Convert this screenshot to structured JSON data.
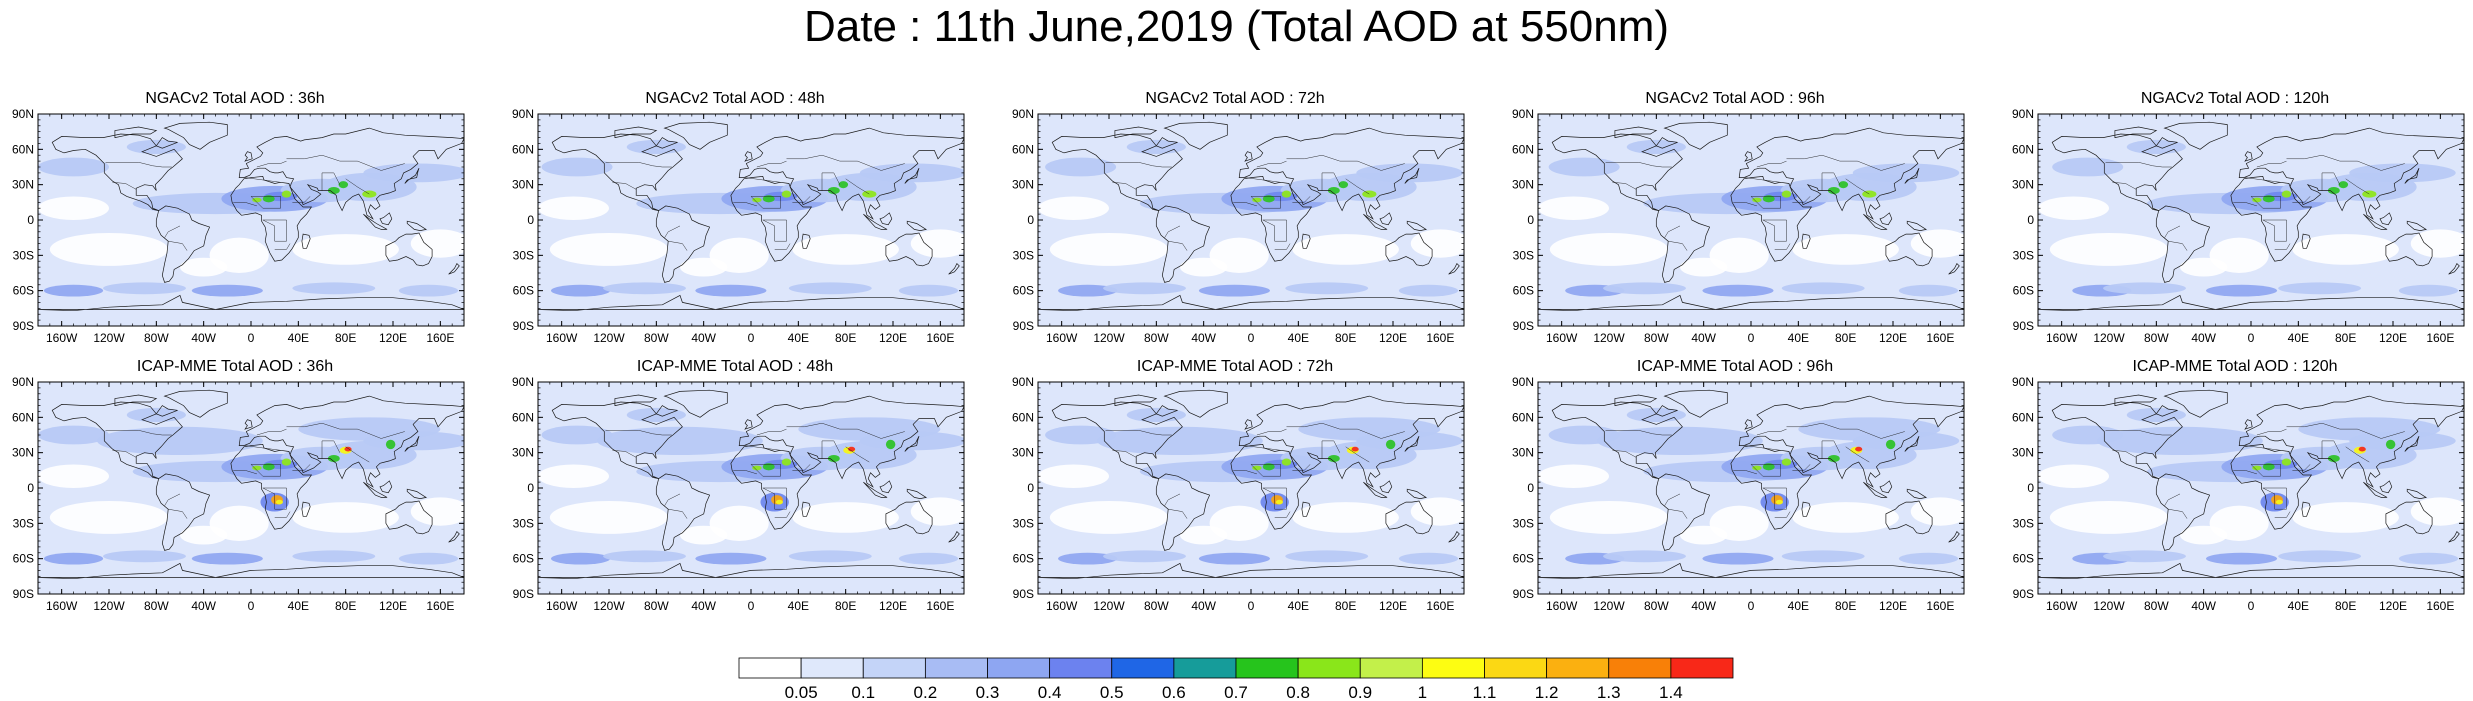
{
  "title": "Date : 11th June,2019 (Total AOD at 550nm)",
  "panels": [
    {
      "title": "NGACv2 Total AOD : 36h"
    },
    {
      "title": "NGACv2 Total AOD : 48h"
    },
    {
      "title": "NGACv2 Total AOD : 72h"
    },
    {
      "title": "NGACv2 Total AOD : 96h"
    },
    {
      "title": "NGACv2 Total AOD : 120h"
    },
    {
      "title": "ICAP-MME Total AOD : 36h"
    },
    {
      "title": "ICAP-MME Total AOD : 48h"
    },
    {
      "title": "ICAP-MME Total AOD : 72h"
    },
    {
      "title": "ICAP-MME Total AOD : 96h"
    },
    {
      "title": "ICAP-MME Total AOD : 120h"
    }
  ],
  "lat_ticks": [
    "90N",
    "60N",
    "30N",
    "0",
    "30S",
    "60S",
    "90S"
  ],
  "lon_ticks": [
    "160W",
    "120W",
    "80W",
    "40W",
    "0",
    "40E",
    "80E",
    "120E",
    "160E"
  ],
  "colorbar": {
    "labels": [
      "0.05",
      "0.1",
      "0.2",
      "0.3",
      "0.4",
      "0.5",
      "0.6",
      "0.7",
      "0.8",
      "0.9",
      "1",
      "1.1",
      "1.2",
      "1.3",
      "1.4"
    ],
    "colors": [
      "#ffffff",
      "#dfe8fb",
      "#c4d4f8",
      "#a8bcf4",
      "#8ea6f2",
      "#6c82ef",
      "#1f66e6",
      "#169c9a",
      "#26c41c",
      "#8ae61a",
      "#c3f04a",
      "#fdfd12",
      "#fbd814",
      "#fbb010",
      "#f88008",
      "#f82818"
    ]
  },
  "map_colors": {
    "background": "#ffffff",
    "light": "#dde6fb",
    "medium": "#b7c9f6",
    "strong": "#90a8f1",
    "deep": "#6f88ee",
    "green": "#2fc22a",
    "lime": "#8ee61e",
    "yellow": "#f5f517",
    "orange": "#f8a313",
    "red": "#f32c20",
    "coast": "#1a1a1a"
  }
}
